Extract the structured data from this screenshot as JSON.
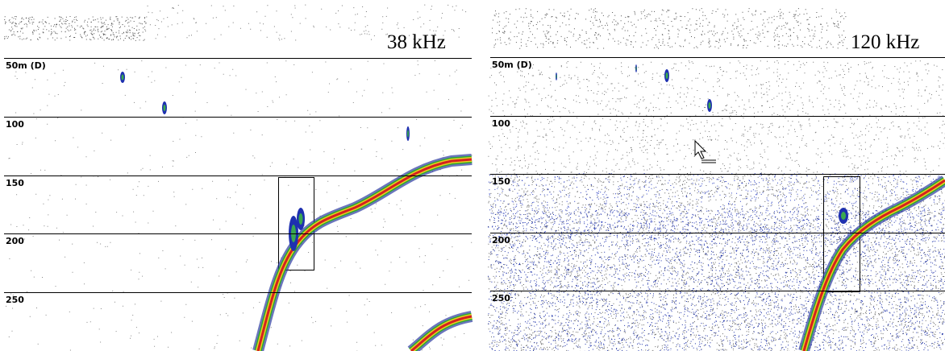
{
  "panels": [
    {
      "label": "38 kHz",
      "depth_labels": [
        "50m (D)",
        "100",
        "150",
        "200",
        "250"
      ]
    },
    {
      "label": "120 kHz",
      "depth_labels": [
        "50m (D)",
        "100",
        "150",
        "200",
        "250"
      ]
    }
  ]
}
